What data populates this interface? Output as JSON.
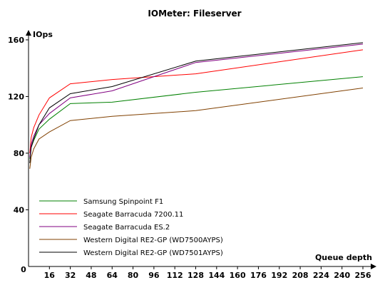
{
  "chart_data": {
    "type": "line",
    "title": "IOMeter: Fileserver",
    "xlabel": "Queue depth",
    "ylabel": "IOps",
    "x_origin_label": "0",
    "xlim": [
      0,
      256
    ],
    "ylim": [
      0,
      165
    ],
    "xticks": [
      16,
      32,
      48,
      64,
      80,
      96,
      112,
      128,
      144,
      160,
      176,
      192,
      208,
      224,
      240,
      256
    ],
    "yticks": [
      40,
      80,
      120,
      160
    ],
    "grid": false,
    "legend_position": "bottom-left",
    "x": [
      1,
      2,
      4,
      8,
      16,
      32,
      64,
      128,
      256
    ],
    "series": [
      {
        "name": "Samsung Spinpoint F1",
        "color": "#008000",
        "values": [
          76,
          84,
          89,
          97,
          104,
          115,
          116,
          123,
          134
        ]
      },
      {
        "name": "Seagate Barracuda 7200.11",
        "color": "#ff0000",
        "values": [
          80,
          91,
          98,
          107,
          119,
          129,
          132,
          136,
          153
        ]
      },
      {
        "name": "Seagate Barracuda ES.2",
        "color": "#800080",
        "values": [
          77,
          86,
          92,
          100,
          108,
          119,
          124,
          144,
          157
        ]
      },
      {
        "name": "Western Digital RE2-GP (WD7500AYPS)",
        "color": "#804000",
        "values": [
          69,
          77,
          83,
          90,
          95,
          103,
          106,
          110,
          126
        ]
      },
      {
        "name": "Western Digital RE2-GP (WD7501AYPS)",
        "color": "#000000",
        "values": [
          73,
          84,
          90,
          100,
          112,
          122,
          127,
          145,
          158
        ]
      }
    ]
  }
}
